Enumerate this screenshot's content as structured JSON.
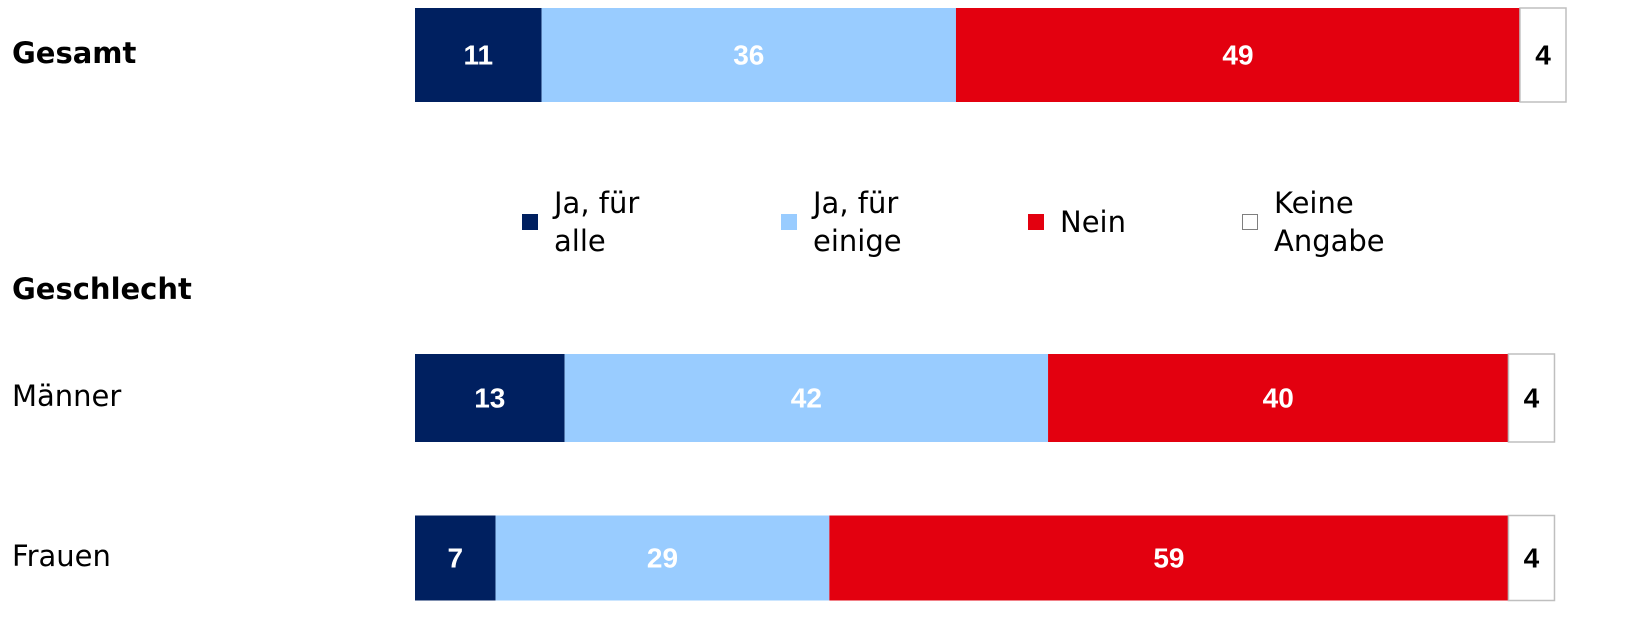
{
  "chart_data": {
    "type": "stacked_bar_horizontal",
    "categories": [
      "Gesamt",
      "Geschlecht",
      "Männer",
      "Frauen"
    ],
    "series": [
      {
        "name": "Ja, für alle",
        "color": "#002060",
        "values": [
          11,
          null,
          13,
          7
        ]
      },
      {
        "name": "Ja, für einige",
        "color": "#99ccff",
        "values": [
          36,
          null,
          42,
          29
        ]
      },
      {
        "name": "Nein",
        "color": "#e3000f",
        "values": [
          49,
          null,
          40,
          59
        ]
      },
      {
        "name": "Keine Angabe",
        "color": "#ffffff",
        "values": [
          4,
          null,
          4,
          4
        ]
      }
    ],
    "xlim": [
      0,
      100
    ],
    "legend": "top"
  }
}
